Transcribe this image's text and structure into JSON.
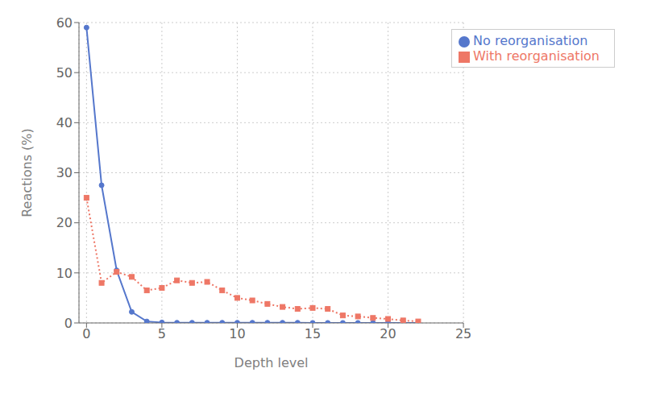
{
  "chart_data": {
    "type": "line",
    "xlabel": "Depth level",
    "ylabel": "Reactions (%)",
    "x": [
      0,
      1,
      2,
      3,
      4,
      5,
      6,
      7,
      8,
      9,
      10,
      11,
      12,
      13,
      14,
      15,
      16,
      17,
      18,
      19,
      20,
      21,
      22
    ],
    "series": [
      {
        "name": "No reorganisation",
        "color": "#5577cc",
        "marker": "circle",
        "line_style": "solid",
        "values": [
          59.0,
          27.5,
          10.5,
          2.2,
          0.3,
          0.1,
          0.05,
          0.05,
          0.05,
          0.05,
          0.05,
          0.05,
          0.05,
          0.05,
          0.05,
          0.02,
          0.02,
          0.02,
          0.02,
          0.02,
          0.02,
          0.02,
          0.02
        ]
      },
      {
        "name": "With reorganisation",
        "color": "#ee7766",
        "marker": "square",
        "line_style": "dotted",
        "values": [
          25.0,
          8.0,
          10.2,
          9.2,
          6.5,
          7.0,
          8.5,
          8.0,
          8.2,
          6.5,
          5.0,
          4.5,
          3.8,
          3.2,
          2.8,
          3.0,
          2.8,
          1.5,
          1.3,
          1.0,
          0.8,
          0.5,
          0.3
        ]
      }
    ],
    "xlim": [
      -0.5,
      25
    ],
    "ylim": [
      0,
      60
    ],
    "xticks": [
      0,
      5,
      10,
      15,
      20,
      25
    ],
    "yticks": [
      0,
      10,
      20,
      30,
      40,
      50,
      60
    ],
    "grid": true,
    "legend": "upper right"
  }
}
